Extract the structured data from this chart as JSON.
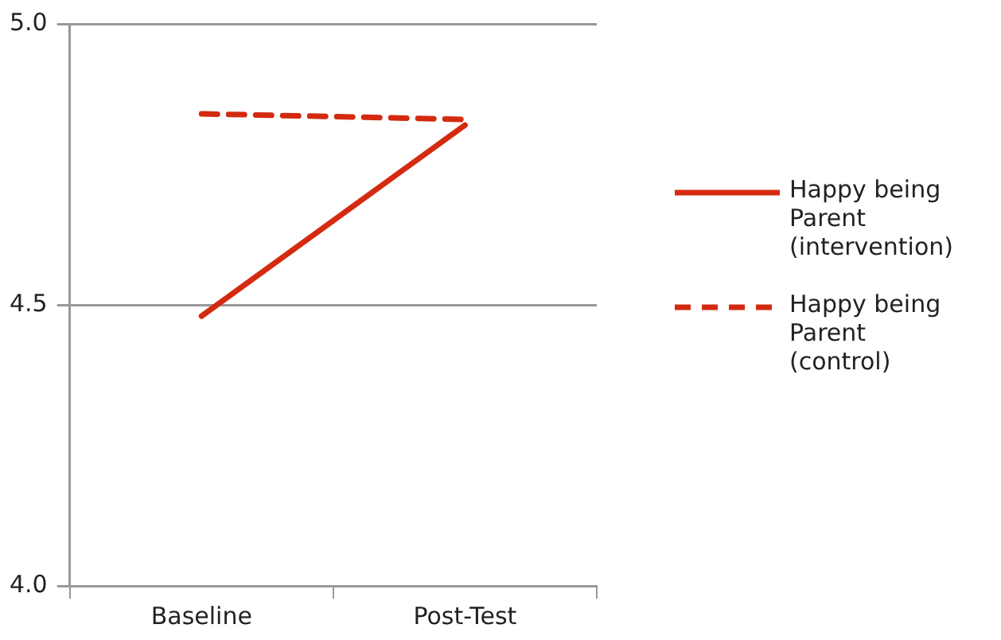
{
  "chart_data": {
    "type": "line",
    "categories": [
      "Baseline",
      "Post-Test"
    ],
    "series": [
      {
        "name": "Happy being Parent (intervention)",
        "color": "#d42a10",
        "values": [
          4.48,
          4.82
        ],
        "line_style": "solid"
      },
      {
        "name": "Happy being Parent (control)",
        "color": "#d42a10",
        "values": [
          4.84,
          4.83
        ],
        "line_style": "dashed"
      }
    ],
    "ylim": [
      4.0,
      5.0
    ],
    "yticks": [
      {
        "value": 4.0,
        "label": "4.0"
      },
      {
        "value": 4.5,
        "label": "4.5"
      },
      {
        "value": 5.0,
        "label": "5.0"
      }
    ],
    "grid": "y",
    "legend": "right",
    "marker": "none"
  }
}
